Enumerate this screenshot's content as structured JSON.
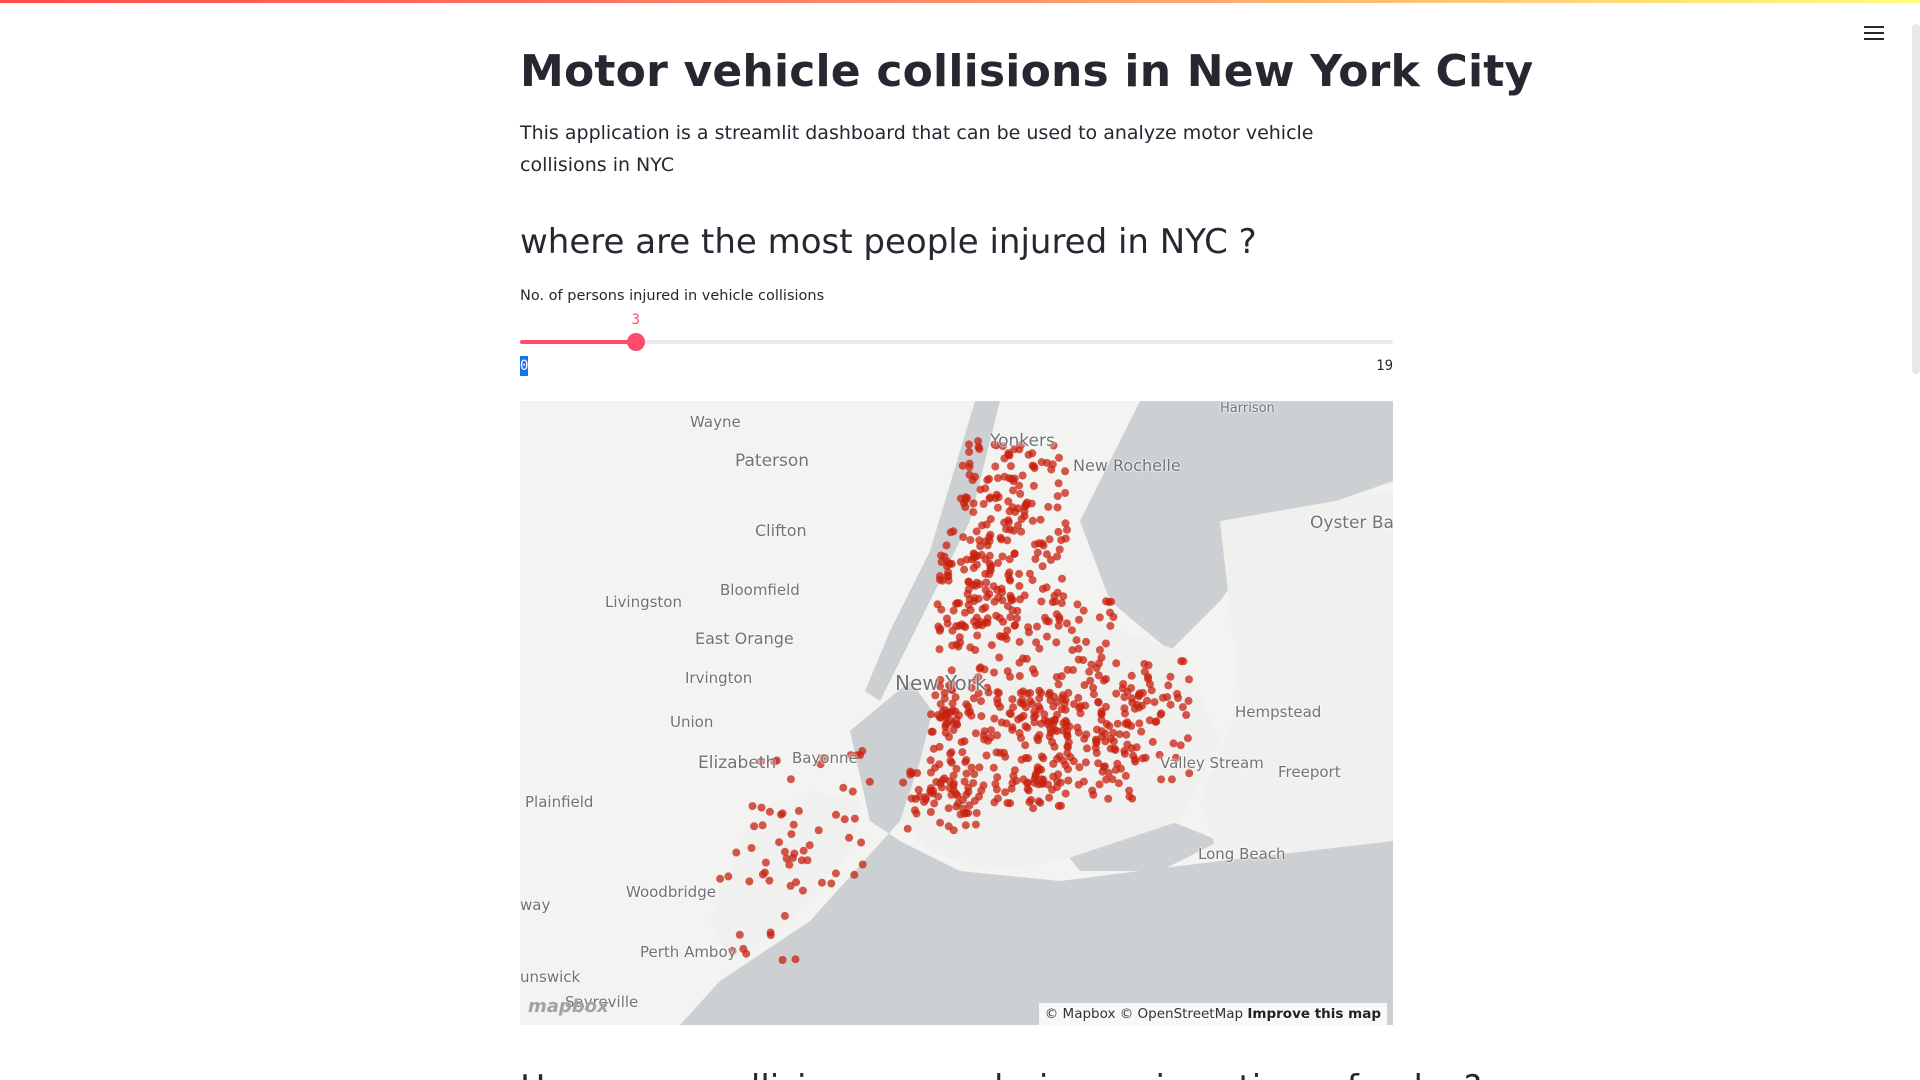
{
  "page": {
    "title": "Motor vehicle collisions in New York City",
    "description": "This application is a streamlit dashboard that can be used to analyze motor vehicle collisions in NYC",
    "section_heading": "where are the most people injured in NYC ?",
    "next_heading": "How many collisions occur during a given time of a day?"
  },
  "slider": {
    "label": "No. of persons injured in vehicle collisions",
    "value": 3,
    "value_label": "3",
    "min": 0,
    "max": 19,
    "min_label": "0",
    "max_label": "19",
    "color": "#ff4b6e"
  },
  "menu": {
    "icon": "hamburger-icon"
  },
  "map": {
    "attribution": "© Mapbox © OpenStreetMap",
    "improve_link": "Improve this map",
    "logo_text": "mapbox",
    "point_color": "#c8210f",
    "place_labels": [
      "Harrison",
      "Wayne",
      "Yonkers",
      "Paterson",
      "New Rochelle",
      "Oyster Ba",
      "Clifton",
      "Bloomfield",
      "Livingston",
      "East Orange",
      "Irvington",
      "New York",
      "Hempstead",
      "Union",
      "Elizabeth",
      "Bayonne",
      "Valley Stream",
      "Freeport",
      "Plainfield",
      "Long Beach",
      "Woodbridge",
      "way",
      "Perth Amboy",
      "unswick",
      "Sayreville"
    ]
  }
}
